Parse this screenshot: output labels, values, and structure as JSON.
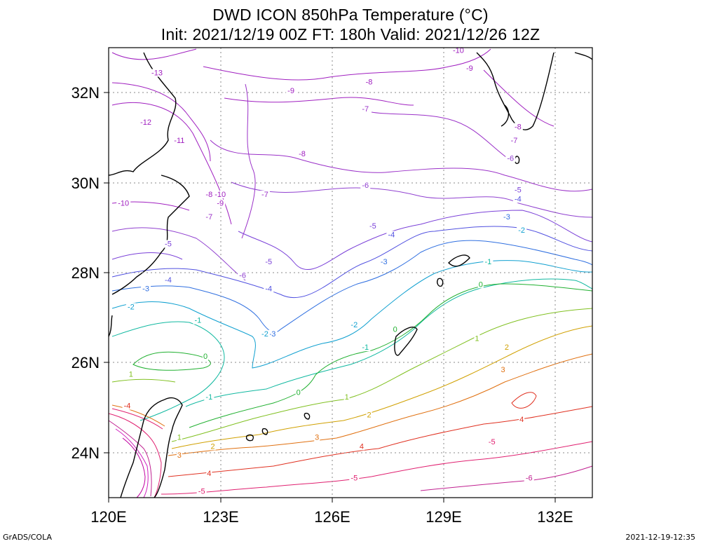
{
  "title": {
    "line1": "DWD ICON 850hPa Temperature (°C)",
    "line2": "Init: 2021/12/19 00Z  FT: 180h  Valid: 2021/12/26 12Z"
  },
  "axes": {
    "lon_labels": [
      "120E",
      "123E",
      "126E",
      "129E",
      "132E"
    ],
    "lat_labels": [
      "32N",
      "30N",
      "28N",
      "26N",
      "24N"
    ]
  },
  "footer": {
    "left": "GrADS/COLA",
    "right": "2021-12-19-12:35"
  },
  "map_data": {
    "lon_range": [
      120,
      133
    ],
    "lat_range": [
      23,
      33
    ],
    "lon_ticks": [
      120,
      123,
      126,
      129,
      132
    ],
    "lat_ticks": [
      32,
      30,
      28,
      26,
      24
    ],
    "grid": "dotted",
    "contour_variable": "850hPa Temperature",
    "contour_interval": 1,
    "contour_labels": [
      {
        "text": "-13",
        "lon": 121.3,
        "lat": 32.4,
        "color": "#a020c0"
      },
      {
        "text": "-12",
        "lon": 121.0,
        "lat": 31.3,
        "color": "#a020c0"
      },
      {
        "text": "-11",
        "lon": 121.9,
        "lat": 30.9,
        "color": "#a020c0"
      },
      {
        "text": "-10",
        "lon": 120.4,
        "lat": 29.5,
        "color": "#a020c0"
      },
      {
        "text": "-10",
        "lon": 123.0,
        "lat": 29.7,
        "color": "#a020c0"
      },
      {
        "text": "-10",
        "lon": 129.4,
        "lat": 32.9,
        "color": "#a020c0"
      },
      {
        "text": "-9",
        "lon": 124.9,
        "lat": 32.0,
        "color": "#a020c0"
      },
      {
        "text": "-9",
        "lon": 123.0,
        "lat": 29.5,
        "color": "#a020c0"
      },
      {
        "text": "-9",
        "lon": 129.7,
        "lat": 32.5,
        "color": "#a020c0"
      },
      {
        "text": "-8",
        "lon": 125.2,
        "lat": 30.6,
        "color": "#a020c0"
      },
      {
        "text": "-8",
        "lon": 127.0,
        "lat": 32.2,
        "color": "#a020c0"
      },
      {
        "text": "-8",
        "lon": 122.7,
        "lat": 29.7,
        "color": "#a020c0"
      },
      {
        "text": "-8",
        "lon": 131.0,
        "lat": 31.2,
        "color": "#a020c0"
      },
      {
        "text": "-7",
        "lon": 126.9,
        "lat": 31.6,
        "color": "#9a30c8"
      },
      {
        "text": "-7",
        "lon": 124.2,
        "lat": 29.7,
        "color": "#9a30c8"
      },
      {
        "text": "-7",
        "lon": 122.7,
        "lat": 29.2,
        "color": "#9a30c8"
      },
      {
        "text": "-7",
        "lon": 130.9,
        "lat": 30.9,
        "color": "#9a30c8"
      },
      {
        "text": "-6",
        "lon": 126.9,
        "lat": 29.9,
        "color": "#9040d0"
      },
      {
        "text": "-6",
        "lon": 123.6,
        "lat": 27.9,
        "color": "#9040d0"
      },
      {
        "text": "-6",
        "lon": 130.8,
        "lat": 30.5,
        "color": "#9040d0"
      },
      {
        "text": "-5",
        "lon": 127.1,
        "lat": 29.0,
        "color": "#7a40d8"
      },
      {
        "text": "-5",
        "lon": 124.3,
        "lat": 28.2,
        "color": "#7a40d8"
      },
      {
        "text": "-5",
        "lon": 131.0,
        "lat": 29.8,
        "color": "#7a40d8"
      },
      {
        "text": "-5",
        "lon": 121.6,
        "lat": 28.6,
        "color": "#7a40d8"
      },
      {
        "text": "-4",
        "lon": 124.3,
        "lat": 27.6,
        "color": "#5050e0"
      },
      {
        "text": "-4",
        "lon": 121.6,
        "lat": 27.8,
        "color": "#5050e0"
      },
      {
        "text": "-4",
        "lon": 127.6,
        "lat": 28.8,
        "color": "#5050e0"
      },
      {
        "text": "-4",
        "lon": 131.0,
        "lat": 29.6,
        "color": "#5050e0"
      },
      {
        "text": "-3",
        "lon": 121.0,
        "lat": 27.6,
        "color": "#2f6fe0"
      },
      {
        "text": "-3",
        "lon": 124.4,
        "lat": 26.6,
        "color": "#2f6fe0"
      },
      {
        "text": "-3",
        "lon": 127.4,
        "lat": 28.2,
        "color": "#2f6fe0"
      },
      {
        "text": "-3",
        "lon": 130.7,
        "lat": 29.2,
        "color": "#2f6fe0"
      },
      {
        "text": "-2",
        "lon": 120.6,
        "lat": 27.2,
        "color": "#10a0d0"
      },
      {
        "text": "-2",
        "lon": 124.2,
        "lat": 26.6,
        "color": "#10a0d0"
      },
      {
        "text": "-2",
        "lon": 126.6,
        "lat": 26.8,
        "color": "#10a0d0"
      },
      {
        "text": "-2",
        "lon": 131.1,
        "lat": 28.9,
        "color": "#10a0d0"
      },
      {
        "text": "-1",
        "lon": 122.4,
        "lat": 26.9,
        "color": "#10b8a0"
      },
      {
        "text": "-1",
        "lon": 122.7,
        "lat": 25.2,
        "color": "#10b8a0"
      },
      {
        "text": "-1",
        "lon": 126.9,
        "lat": 26.3,
        "color": "#10b8a0"
      },
      {
        "text": "-1",
        "lon": 130.2,
        "lat": 28.2,
        "color": "#10b8a0"
      },
      {
        "text": "0",
        "lon": 122.6,
        "lat": 26.1,
        "color": "#20b030"
      },
      {
        "text": "0",
        "lon": 125.1,
        "lat": 25.3,
        "color": "#20b030"
      },
      {
        "text": "0",
        "lon": 127.7,
        "lat": 26.7,
        "color": "#20b030"
      },
      {
        "text": "0",
        "lon": 130.0,
        "lat": 27.7,
        "color": "#20b030"
      },
      {
        "text": "1",
        "lon": 120.6,
        "lat": 25.7,
        "color": "#80c020"
      },
      {
        "text": "1",
        "lon": 121.9,
        "lat": 24.3,
        "color": "#80c020"
      },
      {
        "text": "1",
        "lon": 126.4,
        "lat": 25.2,
        "color": "#80c020"
      },
      {
        "text": "1",
        "lon": 129.9,
        "lat": 26.5,
        "color": "#80c020"
      },
      {
        "text": "2",
        "lon": 122.8,
        "lat": 24.1,
        "color": "#d0a000"
      },
      {
        "text": "2",
        "lon": 127.0,
        "lat": 24.8,
        "color": "#d0a000"
      },
      {
        "text": "2",
        "lon": 130.7,
        "lat": 26.3,
        "color": "#d0a000"
      },
      {
        "text": "3",
        "lon": 125.6,
        "lat": 24.3,
        "color": "#e07010"
      },
      {
        "text": "3",
        "lon": 121.9,
        "lat": 23.9,
        "color": "#e07010"
      },
      {
        "text": "3",
        "lon": 130.6,
        "lat": 25.8,
        "color": "#e07010"
      },
      {
        "text": "-4",
        "lon": 120.5,
        "lat": 25.0,
        "color": "#e03020"
      },
      {
        "text": "4",
        "lon": 122.7,
        "lat": 23.5,
        "color": "#e03020"
      },
      {
        "text": "4",
        "lon": 126.8,
        "lat": 24.1,
        "color": "#e03020"
      },
      {
        "text": "4",
        "lon": 131.1,
        "lat": 24.7,
        "color": "#e03020"
      },
      {
        "text": "-5",
        "lon": 122.5,
        "lat": 23.1,
        "color": "#e02070"
      },
      {
        "text": "-5",
        "lon": 126.6,
        "lat": 23.4,
        "color": "#e02070"
      },
      {
        "text": "-5",
        "lon": 130.3,
        "lat": 24.2,
        "color": "#e02070"
      },
      {
        "text": "-6",
        "lon": 131.3,
        "lat": 23.4,
        "color": "#c02090"
      }
    ]
  }
}
